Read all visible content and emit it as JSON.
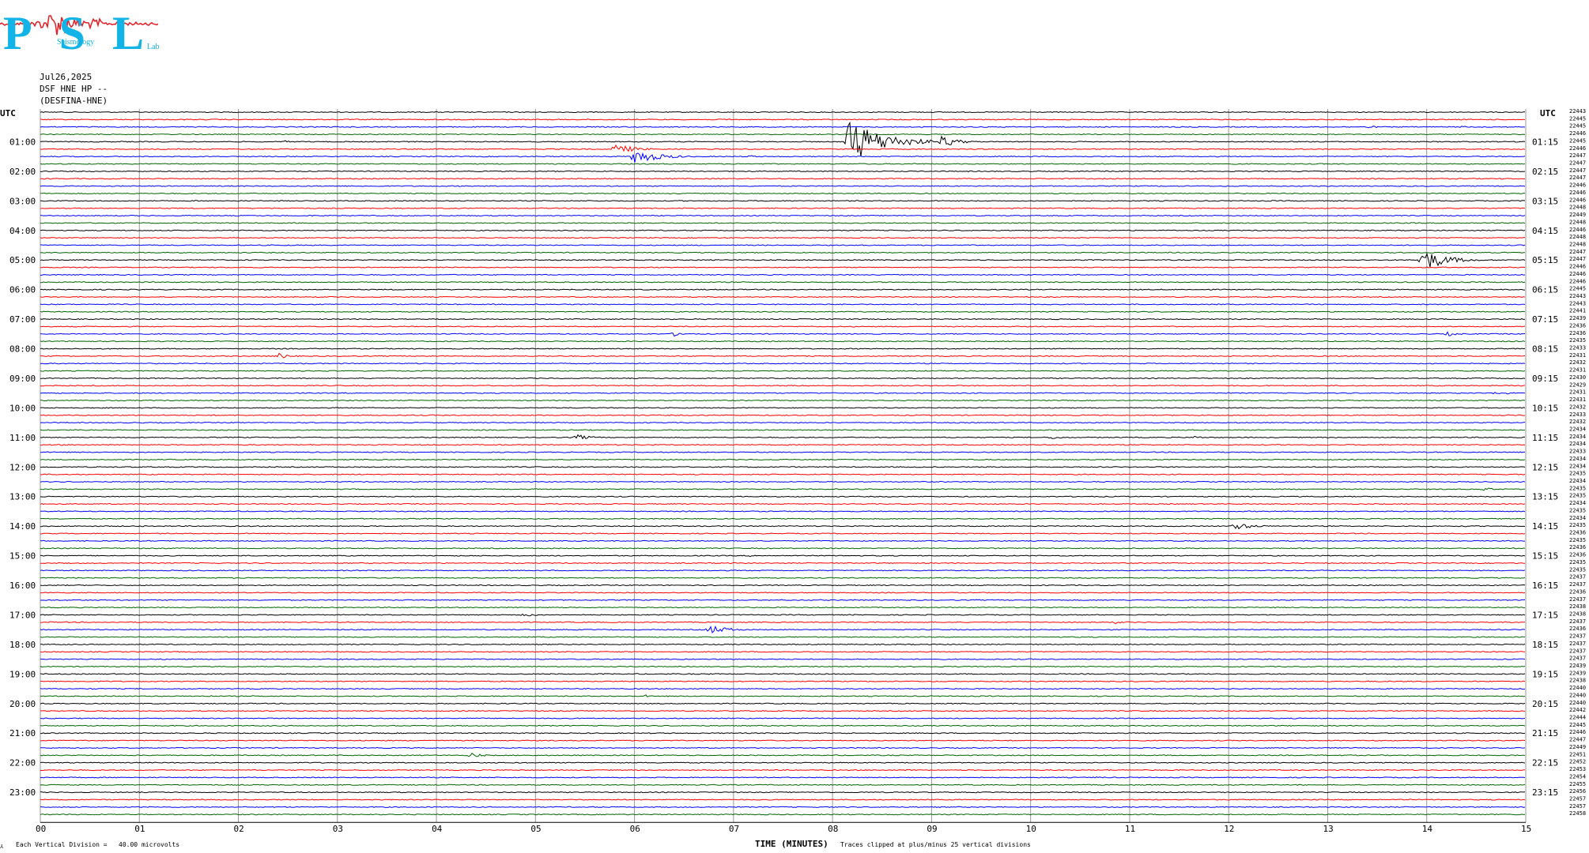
{
  "logo": {
    "text": "PSL",
    "tagline": "Seismology",
    "tagline_suffix": "Lab",
    "primary_color": "#12b3e6",
    "accent_color": "#e81c24"
  },
  "header": {
    "date": "Jul26,2025",
    "channel": "DSF HNE HP --",
    "station": "(DESFINA-HNE)"
  },
  "footer": {
    "division_note": "Each Vertical Division =   40.00 microvolts",
    "axis_title": "TIME (MINUTES)",
    "clip_note": "Traces clipped at plus/minus 25 vertical divisions",
    "corner_mark": "⅄"
  },
  "chart_data": {
    "type": "line",
    "title": "",
    "xlabel": "TIME (MINUTES)",
    "ylabel": "",
    "left_axis_label": "UTC",
    "right_axis_label": "UTC",
    "x_ticks": [
      "00",
      "01",
      "02",
      "03",
      "04",
      "05",
      "06",
      "07",
      "08",
      "09",
      "10",
      "11",
      "12",
      "13",
      "14",
      "15"
    ],
    "xlim": [
      0,
      15
    ],
    "grid": true,
    "trace_minutes": 15,
    "trace_colors": [
      "#000000",
      "#ff0000",
      "#0000ff",
      "#006400"
    ],
    "left_hour_labels": [
      "01:00",
      "02:00",
      "03:00",
      "04:00",
      "05:00",
      "06:00",
      "07:00",
      "08:00",
      "09:00",
      "10:00",
      "11:00",
      "12:00",
      "13:00",
      "14:00",
      "15:00",
      "16:00",
      "17:00",
      "18:00",
      "19:00",
      "20:00",
      "21:00",
      "22:00",
      "23:00"
    ],
    "right_hour_labels": [
      "01:15",
      "02:15",
      "03:15",
      "04:15",
      "05:15",
      "06:15",
      "07:15",
      "08:15",
      "09:15",
      "10:15",
      "11:15",
      "12:15",
      "13:15",
      "14:15",
      "15:15",
      "16:15",
      "17:15",
      "18:15",
      "19:15",
      "20:15",
      "21:15",
      "22:15",
      "23:15"
    ],
    "rms_values": [
      "22443",
      "22445",
      "22445",
      "22446",
      "22445",
      "22446",
      "22447",
      "22447",
      "22447",
      "22447",
      "22446",
      "22446",
      "22446",
      "22448",
      "22449",
      "22448",
      "22446",
      "22448",
      "22448",
      "22447",
      "22447",
      "22446",
      "22446",
      "22446",
      "22445",
      "22443",
      "22443",
      "22441",
      "22439",
      "22436",
      "22436",
      "22435",
      "22433",
      "22431",
      "22432",
      "22431",
      "22430",
      "22429",
      "22431",
      "22431",
      "22432",
      "22433",
      "22432",
      "22434",
      "22434",
      "22434",
      "22433",
      "22434",
      "22434",
      "22435",
      "22434",
      "22435",
      "22435",
      "22434",
      "22435",
      "22434",
      "22435",
      "22436",
      "22435",
      "22436",
      "22436",
      "22435",
      "22435",
      "22437",
      "22437",
      "22436",
      "22437",
      "22438",
      "22438",
      "22437",
      "22436",
      "22437",
      "22437",
      "22437",
      "22437",
      "22439",
      "22439",
      "22438",
      "22440",
      "22440",
      "22440",
      "22442",
      "22444",
      "22445",
      "22446",
      "22447",
      "22449",
      "22451",
      "22452",
      "22453",
      "22454",
      "22455",
      "22456",
      "22457",
      "22457",
      "22458"
    ],
    "events": [
      {
        "trace": 1,
        "minute": 6.9,
        "amplitude": 3,
        "duration": 0.3
      },
      {
        "trace": 2,
        "minute": 13.4,
        "amplitude": 4,
        "duration": 0.25
      },
      {
        "trace": 2,
        "minute": 14.35,
        "amplitude": 3,
        "duration": 0.2
      },
      {
        "trace": 4,
        "minute": 2.45,
        "amplitude": 4,
        "duration": 0.2
      },
      {
        "trace": 5,
        "minute": 5.8,
        "amplitude": 14,
        "duration": 0.5
      },
      {
        "trace": 6,
        "minute": 6.0,
        "amplitude": 20,
        "duration": 0.6
      },
      {
        "trace": 6,
        "minute": 7.15,
        "amplitude": 4,
        "duration": 0.2
      },
      {
        "trace": 4,
        "minute": 8.15,
        "amplitude": 60,
        "duration": 0.9
      },
      {
        "trace": 4,
        "minute": 9.1,
        "amplitude": 16,
        "duration": 0.4
      },
      {
        "trace": 7,
        "minute": 8.8,
        "amplitude": 3,
        "duration": 0.2
      },
      {
        "trace": 14,
        "minute": 4.4,
        "amplitude": 2,
        "duration": 0.1
      },
      {
        "trace": 20,
        "minute": 13.95,
        "amplitude": 30,
        "duration": 0.6
      },
      {
        "trace": 30,
        "minute": 6.4,
        "amplitude": 6,
        "duration": 0.3
      },
      {
        "trace": 30,
        "minute": 14.2,
        "amplitude": 6,
        "duration": 0.3
      },
      {
        "trace": 33,
        "minute": 2.4,
        "amplitude": 8,
        "duration": 0.3
      },
      {
        "trace": 34,
        "minute": 10.3,
        "amplitude": 2,
        "duration": 0.1
      },
      {
        "trace": 38,
        "minute": 14.7,
        "amplitude": 6,
        "duration": 0.35
      },
      {
        "trace": 44,
        "minute": 5.4,
        "amplitude": 8,
        "duration": 0.4
      },
      {
        "trace": 44,
        "minute": 10.2,
        "amplitude": 5,
        "duration": 0.35
      },
      {
        "trace": 44,
        "minute": 11.65,
        "amplitude": 4,
        "duration": 0.3
      },
      {
        "trace": 51,
        "minute": 14.55,
        "amplitude": 5,
        "duration": 0.4
      },
      {
        "trace": 56,
        "minute": 12.05,
        "amplitude": 10,
        "duration": 0.5
      },
      {
        "trace": 60,
        "minute": 7.15,
        "amplitude": 3,
        "duration": 0.2
      },
      {
        "trace": 68,
        "minute": 4.85,
        "amplitude": 5,
        "duration": 0.4
      },
      {
        "trace": 69,
        "minute": 10.85,
        "amplitude": 4,
        "duration": 0.3
      },
      {
        "trace": 70,
        "minute": 6.75,
        "amplitude": 12,
        "duration": 0.5
      },
      {
        "trace": 78,
        "minute": 0.5,
        "amplitude": 3,
        "duration": 0.1
      },
      {
        "trace": 79,
        "minute": 1.7,
        "amplitude": 3,
        "duration": 0.1
      },
      {
        "trace": 79,
        "minute": 6.1,
        "amplitude": 4,
        "duration": 0.15
      },
      {
        "trace": 84,
        "minute": 8.1,
        "amplitude": 3,
        "duration": 0.2
      },
      {
        "trace": 87,
        "minute": 4.35,
        "amplitude": 8,
        "duration": 0.25
      },
      {
        "trace": 89,
        "minute": 8.75,
        "amplitude": 4,
        "duration": 0.15
      },
      {
        "trace": 90,
        "minute": 10.65,
        "amplitude": 3,
        "duration": 0.35
      },
      {
        "trace": 93,
        "minute": 4.65,
        "amplitude": 3,
        "duration": 0.1
      }
    ]
  }
}
